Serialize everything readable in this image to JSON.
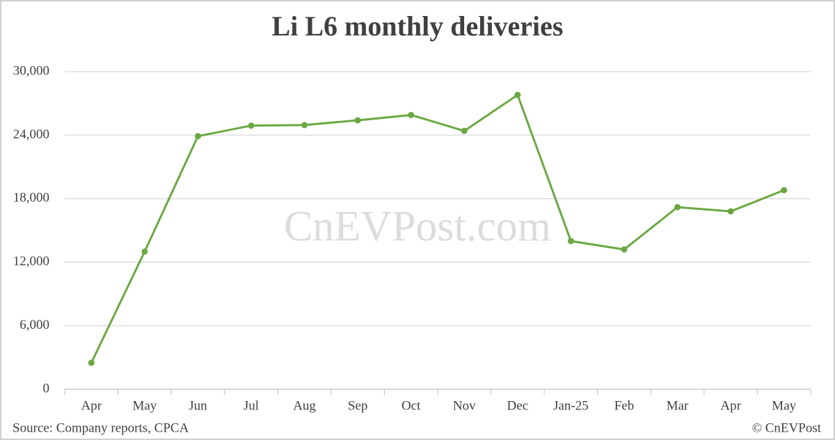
{
  "chart_data": {
    "type": "line",
    "title": "Li L6 monthly deliveries",
    "categories": [
      "Apr",
      "May",
      "Jun",
      "Jul",
      "Aug",
      "Sep",
      "Oct",
      "Nov",
      "Dec",
      "Jan-25",
      "Feb",
      "Mar",
      "Apr",
      "May"
    ],
    "series": [
      {
        "name": "Li L6",
        "color": "#6aa842",
        "values": [
          2500,
          13000,
          23900,
          24900,
          24950,
          25400,
          25900,
          24400,
          27800,
          14000,
          13200,
          17200,
          16800,
          18800
        ]
      }
    ],
    "ylim": [
      0,
      30000
    ],
    "yticks": [
      0,
      {
        "value": 6000,
        "label": "6,000"
      },
      {
        "value": 12000,
        "label": "12,000"
      },
      {
        "value": 18000,
        "label": "18,000"
      },
      {
        "value": 24000,
        "label": "24,000"
      },
      {
        "value": 30000,
        "label": "30,000"
      }
    ],
    "grid": true,
    "watermark": "CnEVPost.com",
    "source": "Source: Company reports, CPCA",
    "credit": "© CnEVPost"
  }
}
